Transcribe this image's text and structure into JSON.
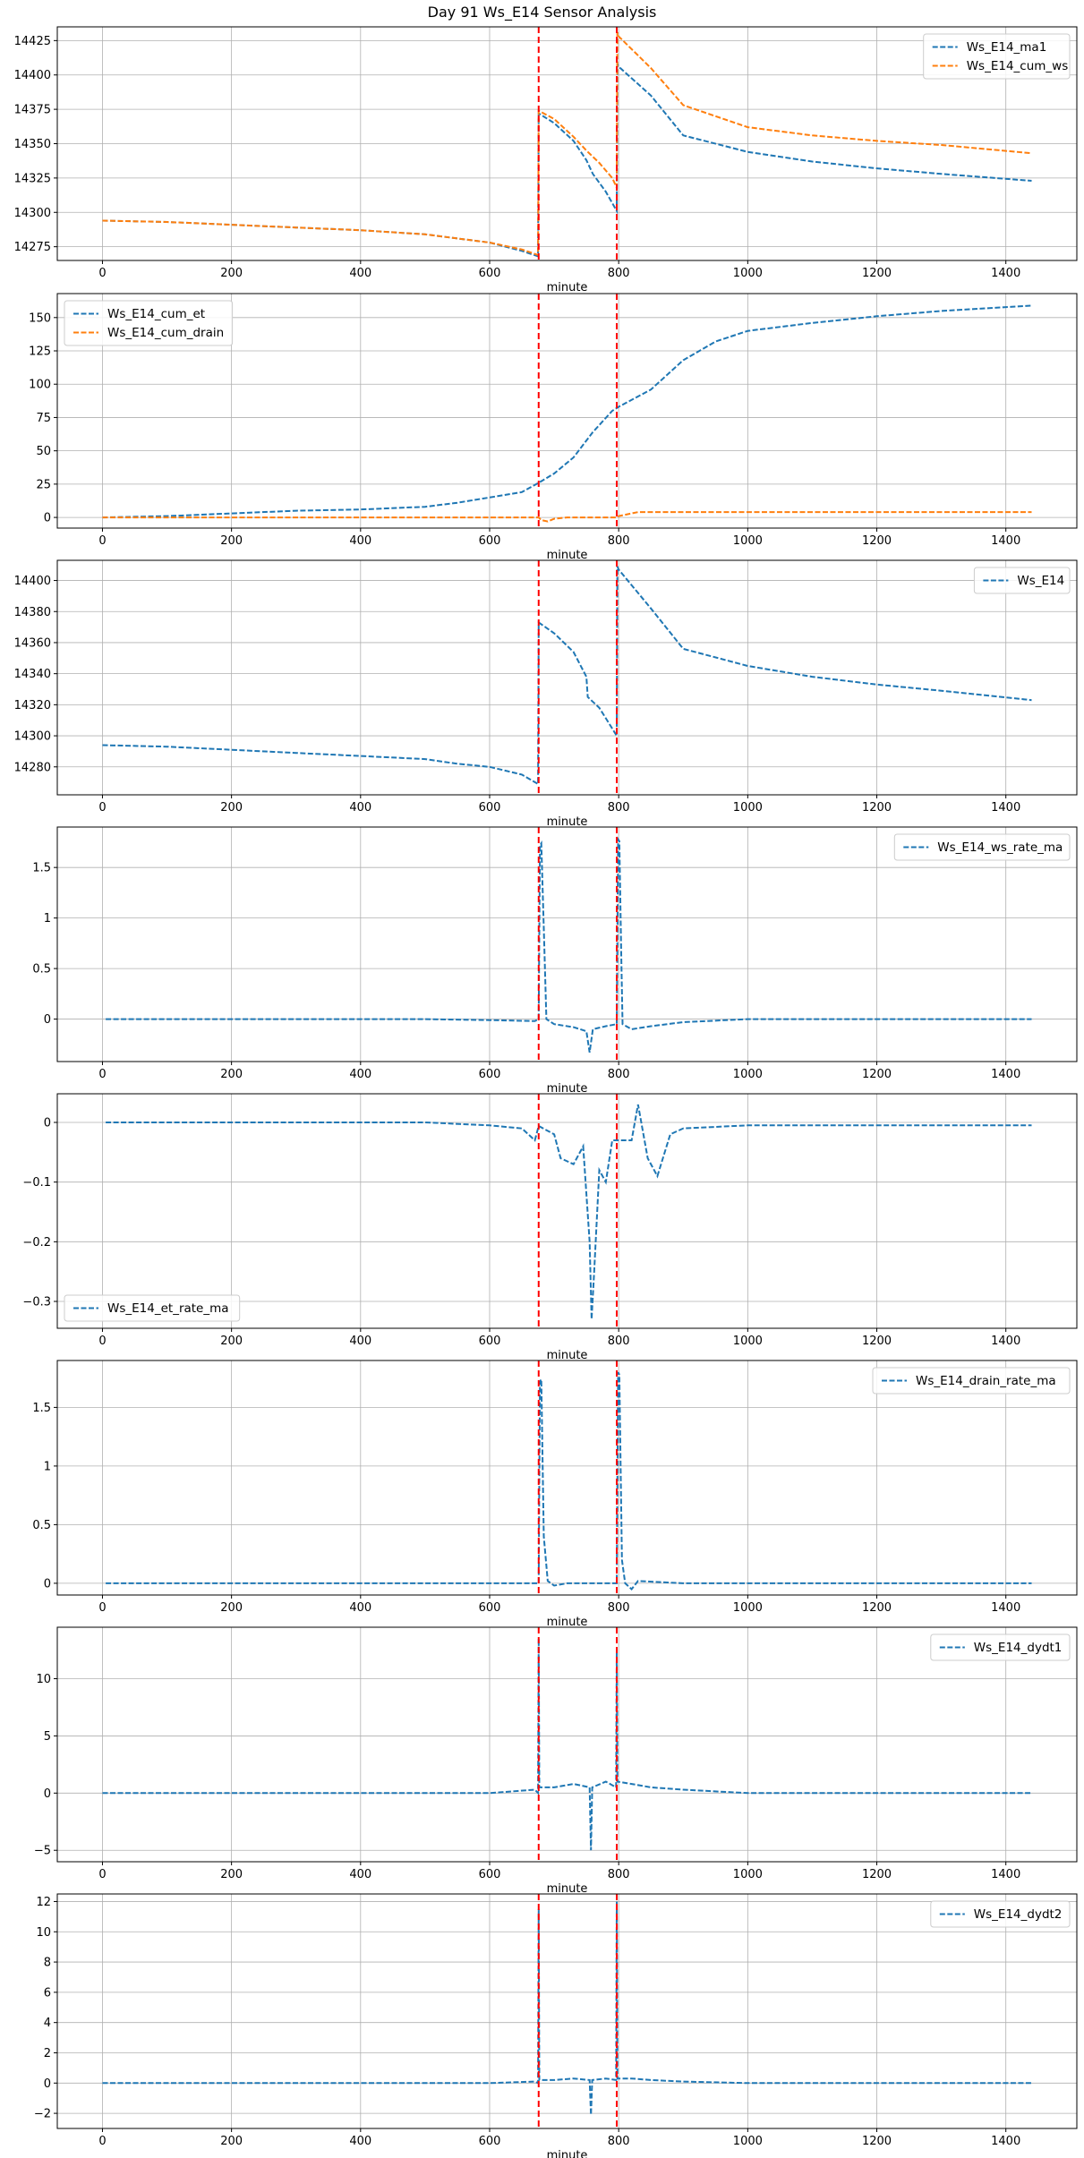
{
  "figure_title": "Day 91 Ws_E14 Sensor Analysis",
  "colors": {
    "series_blue": "#1f77b4",
    "series_orange": "#ff7f0e",
    "event_line": "#ff0000",
    "grid": "#b0b0b0"
  },
  "chart_data": [
    {
      "type": "line",
      "name": "panel-cum-ws",
      "xlabel": "minute",
      "ylabel": "",
      "xlim": [
        -70,
        1510
      ],
      "ylim": [
        14265,
        14435
      ],
      "xticks": [
        0,
        200,
        400,
        600,
        800,
        1000,
        1200,
        1400
      ],
      "yticks": [
        14275,
        14300,
        14325,
        14350,
        14375,
        14400,
        14425
      ],
      "event_lines": [
        676,
        797
      ],
      "grid": true,
      "legend_position": "top-right",
      "series": [
        {
          "name": "Ws_E14_ma1",
          "color": "#1f77b4",
          "style": "dashed",
          "x": [
            0,
            100,
            200,
            300,
            400,
            500,
            550,
            600,
            650,
            675,
            676,
            700,
            730,
            750,
            760,
            780,
            797,
            798,
            800,
            850,
            900,
            1000,
            1100,
            1200,
            1300,
            1440
          ],
          "y": [
            14294,
            14293,
            14291,
            14289,
            14287,
            14284,
            14281,
            14278,
            14272,
            14268,
            14372,
            14365,
            14352,
            14338,
            14328,
            14315,
            14301,
            14408,
            14406,
            14385,
            14356,
            14344,
            14337,
            14332,
            14328,
            14323
          ]
        },
        {
          "name": "Ws_E14_cum_ws",
          "color": "#ff7f0e",
          "style": "dashed",
          "x": [
            0,
            100,
            200,
            300,
            400,
            500,
            550,
            600,
            650,
            675,
            676,
            700,
            730,
            750,
            770,
            790,
            797,
            798,
            800,
            850,
            900,
            1000,
            1100,
            1200,
            1300,
            1440
          ],
          "y": [
            14294,
            14293,
            14291,
            14289,
            14287,
            14284,
            14281,
            14278,
            14273,
            14269,
            14374,
            14368,
            14355,
            14345,
            14336,
            14325,
            14318,
            14431,
            14428,
            14405,
            14378,
            14362,
            14356,
            14352,
            14349,
            14343
          ]
        }
      ]
    },
    {
      "type": "line",
      "name": "panel-cum-et-drain",
      "xlabel": "minute",
      "ylabel": "",
      "xlim": [
        -70,
        1510
      ],
      "ylim": [
        -8,
        168
      ],
      "xticks": [
        0,
        200,
        400,
        600,
        800,
        1000,
        1200,
        1400
      ],
      "yticks": [
        0,
        25,
        50,
        75,
        100,
        125,
        150
      ],
      "event_lines": [
        676,
        797
      ],
      "grid": true,
      "legend_position": "top-left",
      "series": [
        {
          "name": "Ws_E14_cum_et",
          "color": "#1f77b4",
          "style": "dashed",
          "x": [
            0,
            100,
            200,
            300,
            400,
            500,
            550,
            600,
            650,
            676,
            700,
            730,
            760,
            790,
            800,
            850,
            900,
            950,
            1000,
            1100,
            1200,
            1300,
            1440
          ],
          "y": [
            0,
            1,
            3,
            5,
            6,
            8,
            11,
            15,
            19,
            26,
            33,
            45,
            64,
            80,
            83,
            96,
            118,
            132,
            140,
            146,
            151,
            155,
            159
          ]
        },
        {
          "name": "Ws_E14_cum_drain",
          "color": "#ff7f0e",
          "style": "dashed",
          "x": [
            0,
            600,
            676,
            680,
            690,
            700,
            720,
            797,
            800,
            810,
            820,
            830,
            900,
            1440
          ],
          "y": [
            0,
            0,
            0,
            -2,
            -3,
            -1,
            0,
            0,
            1,
            2,
            3,
            4,
            4,
            4
          ]
        }
      ]
    },
    {
      "type": "line",
      "name": "panel-ws",
      "xlabel": "minute",
      "ylabel": "",
      "xlim": [
        -70,
        1510
      ],
      "ylim": [
        14262,
        14413
      ],
      "xticks": [
        0,
        200,
        400,
        600,
        800,
        1000,
        1200,
        1400
      ],
      "yticks": [
        14280,
        14300,
        14320,
        14340,
        14360,
        14380,
        14400
      ],
      "event_lines": [
        676,
        797
      ],
      "grid": true,
      "legend_position": "top-right",
      "series": [
        {
          "name": "Ws_E14",
          "color": "#1f77b4",
          "style": "dashed",
          "x": [
            0,
            100,
            200,
            300,
            400,
            500,
            550,
            600,
            650,
            675,
            676,
            700,
            730,
            750,
            752,
            770,
            785,
            797,
            798,
            800,
            850,
            900,
            1000,
            1100,
            1200,
            1300,
            1440
          ],
          "y": [
            14294,
            14293,
            14291,
            14289,
            14287,
            14285,
            14282,
            14280,
            14275,
            14269,
            14373,
            14366,
            14354,
            14338,
            14325,
            14318,
            14308,
            14300,
            14409,
            14407,
            14382,
            14356,
            14345,
            14338,
            14333,
            14329,
            14323
          ]
        }
      ]
    },
    {
      "type": "line",
      "name": "panel-ws-rate",
      "xlabel": "minute",
      "ylabel": "",
      "xlim": [
        -70,
        1510
      ],
      "ylim": [
        -0.42,
        1.9
      ],
      "xticks": [
        0,
        200,
        400,
        600,
        800,
        1000,
        1200,
        1400
      ],
      "yticks": [
        0.0,
        0.5,
        1.0,
        1.5
      ],
      "event_lines": [
        676,
        797
      ],
      "grid": true,
      "legend_position": "top-right",
      "series": [
        {
          "name": "Ws_E14_ws_rate_ma",
          "color": "#1f77b4",
          "style": "dashed",
          "x": [
            5,
            100,
            200,
            300,
            400,
            500,
            600,
            670,
            676,
            678,
            680,
            684,
            688,
            700,
            730,
            750,
            755,
            760,
            780,
            797,
            799,
            801,
            804,
            806,
            820,
            850,
            900,
            1000,
            1200,
            1440
          ],
          "y": [
            0,
            0,
            0,
            0,
            0,
            0,
            -0.01,
            -0.02,
            0.0,
            1.72,
            1.74,
            0.9,
            0.0,
            -0.05,
            -0.08,
            -0.12,
            -0.33,
            -0.1,
            -0.07,
            -0.05,
            1.78,
            1.76,
            0.6,
            -0.05,
            -0.1,
            -0.07,
            -0.03,
            0,
            0,
            0
          ]
        }
      ]
    },
    {
      "type": "line",
      "name": "panel-et-rate",
      "xlabel": "minute",
      "ylabel": "",
      "xlim": [
        -70,
        1510
      ],
      "ylim": [
        -0.345,
        0.048
      ],
      "xticks": [
        0,
        200,
        400,
        600,
        800,
        1000,
        1200,
        1400
      ],
      "yticks": [
        0.0,
        -0.1,
        -0.2,
        -0.3
      ],
      "event_lines": [
        676,
        797
      ],
      "grid": true,
      "legend_position": "bottom-left",
      "series": [
        {
          "name": "Ws_E14_et_rate_ma",
          "color": "#1f77b4",
          "style": "dashed",
          "x": [
            5,
            60,
            140,
            200,
            300,
            400,
            500,
            600,
            650,
            670,
            676,
            700,
            710,
            730,
            745,
            755,
            758,
            762,
            770,
            780,
            790,
            797,
            820,
            830,
            845,
            860,
            880,
            900,
            1000,
            1200,
            1440
          ],
          "y": [
            0,
            0,
            0,
            0,
            0,
            0,
            0,
            -0.005,
            -0.01,
            -0.03,
            -0.006,
            -0.02,
            -0.06,
            -0.07,
            -0.04,
            -0.2,
            -0.33,
            -0.25,
            -0.08,
            -0.1,
            -0.03,
            -0.03,
            -0.03,
            0.03,
            -0.06,
            -0.09,
            -0.02,
            -0.01,
            -0.005,
            -0.005,
            -0.005
          ]
        }
      ]
    },
    {
      "type": "line",
      "name": "panel-drain-rate",
      "xlabel": "minute",
      "ylabel": "",
      "xlim": [
        -70,
        1510
      ],
      "ylim": [
        -0.1,
        1.9
      ],
      "xticks": [
        0,
        200,
        400,
        600,
        800,
        1000,
        1200,
        1400
      ],
      "yticks": [
        0.0,
        0.5,
        1.0,
        1.5
      ],
      "event_lines": [
        676,
        797
      ],
      "grid": true,
      "legend_position": "top-right",
      "series": [
        {
          "name": "Ws_E14_drain_rate_ma",
          "color": "#1f77b4",
          "style": "dashed",
          "x": [
            5,
            200,
            400,
            600,
            670,
            676,
            678,
            680,
            684,
            690,
            700,
            720,
            797,
            799,
            801,
            805,
            810,
            820,
            830,
            900,
            1200,
            1440
          ],
          "y": [
            0,
            0,
            0,
            0,
            0,
            0.0,
            1.72,
            1.74,
            0.4,
            0.02,
            -0.02,
            0.0,
            0.0,
            1.8,
            1.78,
            0.2,
            0.0,
            -0.05,
            0.02,
            0,
            0,
            0
          ]
        }
      ]
    },
    {
      "type": "line",
      "name": "panel-dydt1",
      "xlabel": "minute",
      "ylabel": "",
      "xlim": [
        -70,
        1510
      ],
      "ylim": [
        -6.0,
        14.5
      ],
      "xticks": [
        0,
        200,
        400,
        600,
        800,
        1000,
        1200,
        1400
      ],
      "yticks": [
        -5,
        0,
        5,
        10
      ],
      "event_lines": [
        676,
        797
      ],
      "grid": true,
      "legend_position": "top-right",
      "series": [
        {
          "name": "Ws_E14_dydt1",
          "color": "#1f77b4",
          "style": "dashed",
          "x": [
            0,
            200,
            400,
            600,
            670,
            675,
            676,
            677,
            700,
            730,
            755,
            757,
            759,
            780,
            796,
            797,
            798,
            820,
            850,
            900,
            1000,
            1200,
            1440
          ],
          "y": [
            0,
            0,
            0,
            0,
            0.3,
            0,
            13.5,
            0.5,
            0.5,
            0.8,
            0.5,
            -5,
            0.5,
            1.0,
            0.5,
            12.5,
            1.0,
            0.8,
            0.5,
            0.3,
            0,
            0,
            0
          ]
        }
      ]
    },
    {
      "type": "line",
      "name": "panel-dydt2",
      "xlabel": "minute",
      "ylabel": "",
      "xlim": [
        -70,
        1510
      ],
      "ylim": [
        -3.0,
        12.5
      ],
      "xticks": [
        0,
        200,
        400,
        600,
        800,
        1000,
        1200,
        1400
      ],
      "yticks": [
        -2,
        0,
        2,
        4,
        6,
        8,
        10,
        12
      ],
      "event_lines": [
        676,
        797
      ],
      "grid": true,
      "legend_position": "top-right",
      "series": [
        {
          "name": "Ws_E14_dydt2",
          "color": "#1f77b4",
          "style": "dashed",
          "x": [
            0,
            200,
            400,
            600,
            670,
            675,
            676,
            677,
            700,
            730,
            755,
            757,
            759,
            780,
            796,
            797,
            798,
            820,
            850,
            900,
            1000,
            1200,
            1440
          ],
          "y": [
            0,
            0,
            0,
            0,
            0.1,
            0,
            11.5,
            0.2,
            0.2,
            0.3,
            0.2,
            -2.1,
            0.2,
            0.3,
            0.2,
            12.0,
            0.3,
            0.3,
            0.2,
            0.1,
            0,
            0,
            0
          ]
        }
      ]
    }
  ]
}
